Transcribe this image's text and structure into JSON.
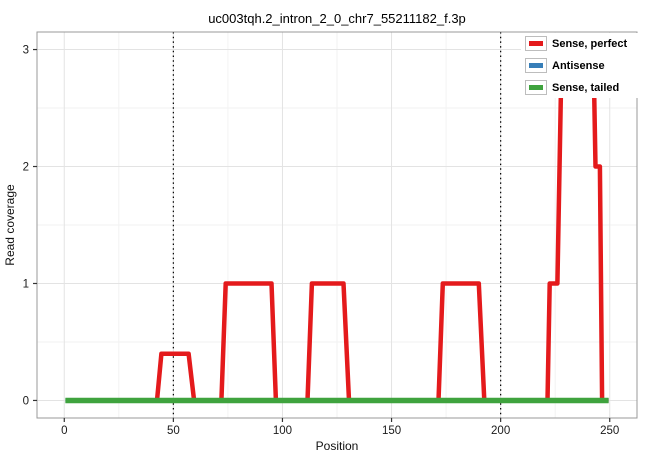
{
  "title": "uc003tqh.2_intron_2_0_chr7_55211182_f.3p",
  "axes": {
    "x_label": "Position",
    "y_label": "Read coverage"
  },
  "legend": {
    "items": [
      {
        "label": "Sense, perfect",
        "color": "#e41a1c"
      },
      {
        "label": "Antisense",
        "color": "#377eb8"
      },
      {
        "label": "Sense, tailed",
        "color": "#3fa33e"
      }
    ]
  },
  "chart_data": {
    "type": "line",
    "title": "uc003tqh.2_intron_2_0_chr7_55211182_f.3p",
    "xlabel": "Position",
    "ylabel": "Read coverage",
    "xlim": [
      -12.5,
      262.5
    ],
    "ylim": [
      -0.15,
      3.15
    ],
    "x_ticks": [
      0,
      50,
      100,
      150,
      200,
      250
    ],
    "y_ticks": [
      0,
      1,
      2,
      3
    ],
    "minor_x_ticks": [
      25,
      75,
      125,
      175,
      225
    ],
    "minor_y_ticks": [
      0.5,
      1.5,
      2.5
    ],
    "grid": true,
    "legend_position": "top-right-inside",
    "vlines": {
      "positions": [
        50,
        200
      ],
      "style": "dotted",
      "color": "#000000"
    },
    "series": [
      {
        "name": "Sense, perfect",
        "color": "#e41a1c",
        "stroke_width": 4.5,
        "points": [
          [
            1,
            0
          ],
          [
            42.5,
            0
          ],
          [
            44.5,
            0.4
          ],
          [
            57,
            0.4
          ],
          [
            59.5,
            0
          ],
          [
            72,
            0
          ],
          [
            74,
            1
          ],
          [
            95,
            1
          ],
          [
            97,
            0
          ],
          [
            111.5,
            0
          ],
          [
            113.5,
            1
          ],
          [
            128,
            1
          ],
          [
            130.5,
            0
          ],
          [
            171.5,
            0
          ],
          [
            173.5,
            1
          ],
          [
            190,
            1
          ],
          [
            192.5,
            0
          ],
          [
            221.5,
            0
          ],
          [
            222.5,
            1
          ],
          [
            226,
            1
          ],
          [
            228,
            3
          ],
          [
            242.5,
            3
          ],
          [
            243.5,
            2
          ],
          [
            245.5,
            2
          ],
          [
            246.5,
            0
          ],
          [
            249.5,
            0
          ]
        ],
        "note": "peak plateau at 3 is hidden behind the legend box"
      },
      {
        "name": "Antisense",
        "color": "#377eb8",
        "stroke_width": 4.5,
        "points": [
          [
            0.5,
            0
          ],
          [
            249.5,
            0
          ]
        ]
      },
      {
        "name": "Sense, tailed",
        "color": "#3fa33e",
        "stroke_width": 5.5,
        "points": [
          [
            0.5,
            0
          ],
          [
            249.5,
            0
          ]
        ]
      }
    ],
    "style": {
      "panel_border": "#999999",
      "grid_major": "#e3e3e3",
      "grid_minor": "#f2f2f2",
      "tick_color": "#333333",
      "tick_label_color": "#1a1a1a"
    }
  }
}
